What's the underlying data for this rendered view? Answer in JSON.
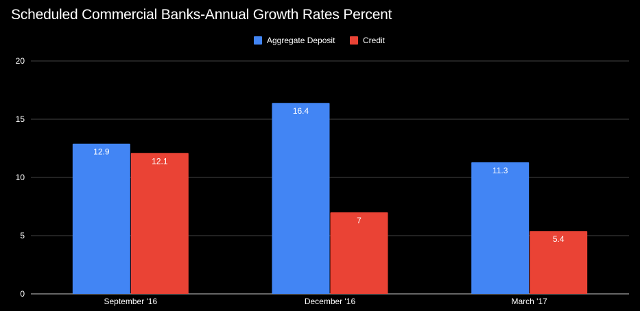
{
  "chart_data": {
    "type": "bar",
    "title": "Scheduled Commercial Banks-Annual Growth Rates Percent",
    "categories": [
      "September '16",
      "December '16",
      "March '17"
    ],
    "series": [
      {
        "name": "Aggregate Deposit",
        "color": "#4285f4",
        "values": [
          12.9,
          16.4,
          11.3
        ],
        "labels": [
          "12.9",
          "16.4",
          "11.3"
        ]
      },
      {
        "name": "Credit",
        "color": "#ea4335",
        "values": [
          12.1,
          7,
          5.4
        ],
        "labels": [
          "12.1",
          "7",
          "5.4"
        ]
      }
    ],
    "ylim": [
      0,
      20
    ],
    "yticks": [
      "0",
      "5",
      "10",
      "15",
      "20"
    ],
    "xlabel": "",
    "ylabel": "",
    "legend": "top-center",
    "grid": true
  }
}
